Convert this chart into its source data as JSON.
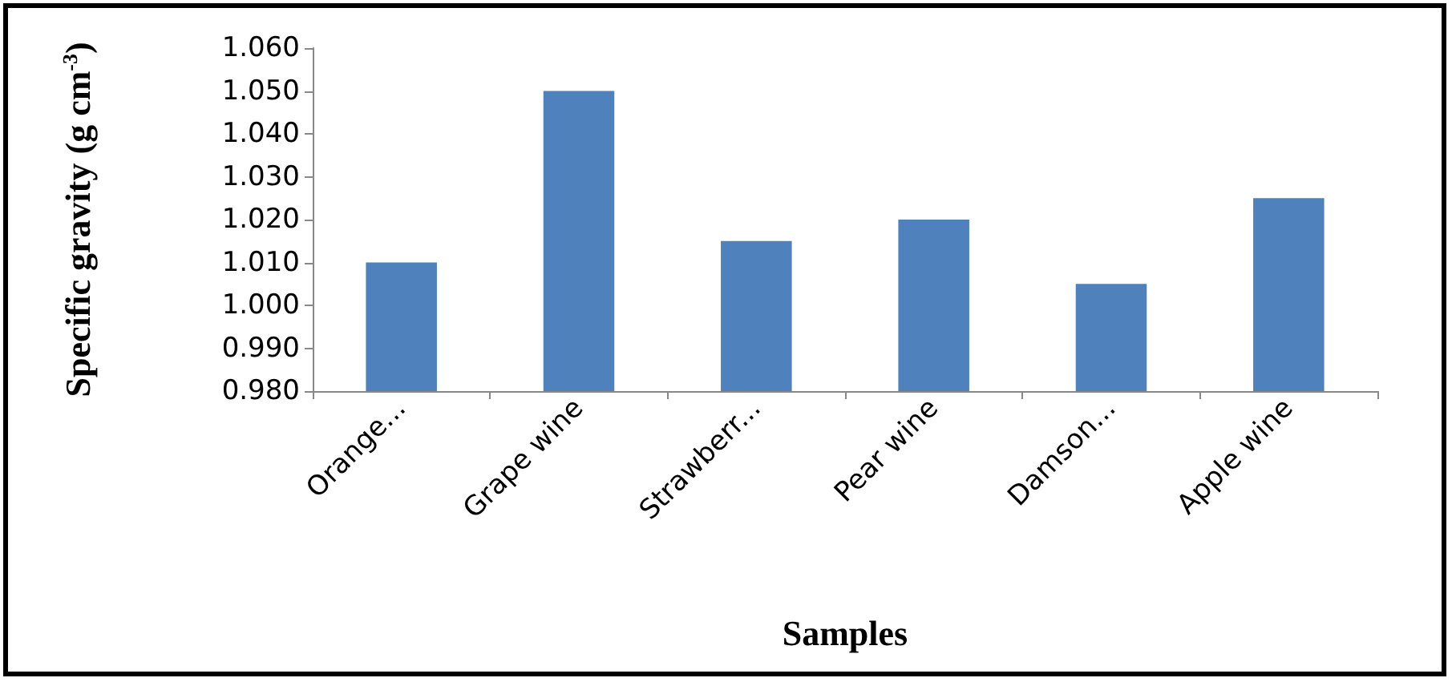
{
  "chart_data": {
    "type": "bar",
    "xlabel": "Samples",
    "ylabel": "Specific gravity (g cm$^{-3}$)",
    "categories": [
      "Orange...",
      "Grape wine",
      "Strawberr...",
      "Pear wine",
      "Damson...",
      "Apple wine"
    ],
    "values": [
      1.01,
      1.05,
      1.015,
      1.02,
      1.005,
      1.025
    ],
    "color": "#4f81bd",
    "ylim": [
      0.98,
      1.06
    ],
    "yticks": [
      {
        "value": 0.98,
        "label": "0.980"
      },
      {
        "value": 0.99,
        "label": "0.990"
      },
      {
        "value": 1.0,
        "label": "1.000"
      },
      {
        "value": 1.01,
        "label": "1.010"
      },
      {
        "value": 1.02,
        "label": "1.020"
      },
      {
        "value": 1.03,
        "label": "1.030"
      },
      {
        "value": 1.04,
        "label": "1.040"
      },
      {
        "value": 1.05,
        "label": "1.050"
      },
      {
        "value": 1.06,
        "label": "1.060"
      }
    ],
    "grid": false
  }
}
